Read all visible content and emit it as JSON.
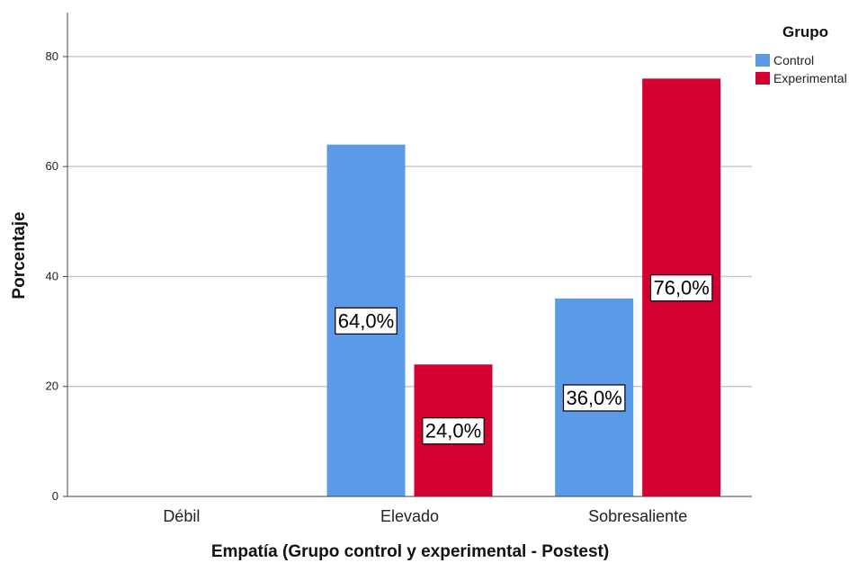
{
  "chart_data": {
    "type": "bar",
    "categories": [
      "Débil",
      "Elevado",
      "Sobresaliente"
    ],
    "series": [
      {
        "name": "Control",
        "values": [
          0,
          64,
          36
        ],
        "labels": [
          "",
          "64,0%",
          "36,0%"
        ]
      },
      {
        "name": "Experimental",
        "values": [
          0,
          24,
          76
        ],
        "labels": [
          "",
          "24,0%",
          "76,0%"
        ]
      }
    ],
    "xlabel": "Empatía (Grupo control y experimental - Postest)",
    "ylabel": "Porcentaje",
    "ylim": [
      0,
      88
    ],
    "yticks": [
      0,
      20,
      40,
      60,
      80
    ],
    "legend": {
      "title": "Grupo",
      "position": "top-right"
    },
    "grid": true,
    "colors": {
      "Control": "#5a9ae6",
      "Experimental": "#d40032"
    }
  }
}
